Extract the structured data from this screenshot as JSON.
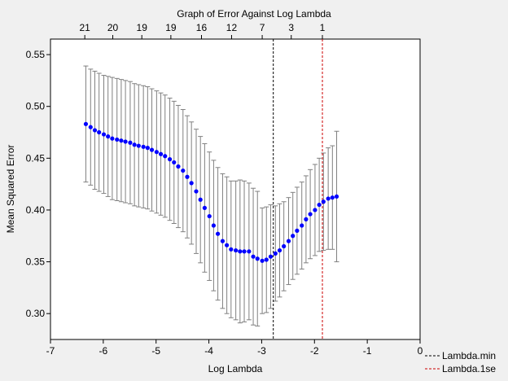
{
  "chart_data": {
    "type": "scatter",
    "title": "Graph of Error Against Log Lambda",
    "xlabel": "Log Lambda",
    "ylabel": "Mean Squared Error",
    "xlim": [
      -7,
      0
    ],
    "ylim": [
      0.275,
      0.565
    ],
    "x_ticks": [
      -7,
      -6,
      -5,
      -4,
      -3,
      -2,
      -1,
      0
    ],
    "x_tick_labels": [
      "-7",
      "-6",
      "-5",
      "-4",
      "-3",
      "-2",
      "-1",
      "0"
    ],
    "y_ticks": [
      0.3,
      0.35,
      0.4,
      0.45,
      0.5,
      0.55
    ],
    "y_tick_labels": [
      "0.30",
      "0.35",
      "0.40",
      "0.45",
      "0.50",
      "0.55"
    ],
    "top_axis": {
      "positions": [
        -6.35,
        -5.82,
        -5.27,
        -4.72,
        -4.14,
        -3.57,
        -2.99,
        -2.44,
        -1.85
      ],
      "labels": [
        "21",
        "20",
        "19",
        "19",
        "16",
        "12",
        "7",
        "3",
        "1"
      ]
    },
    "grid": false,
    "point_color": "#0000ff",
    "errorbar_color": "#808080",
    "series": [
      {
        "x": [
          -6.33,
          -6.24,
          -6.16,
          -6.08,
          -5.99,
          -5.91,
          -5.83,
          -5.74,
          -5.66,
          -5.58,
          -5.49,
          -5.41,
          -5.33,
          -5.24,
          -5.16,
          -5.08,
          -4.99,
          -4.91,
          -4.83,
          -4.74,
          -4.66,
          -4.58,
          -4.49,
          -4.41,
          -4.33,
          -4.24,
          -4.16,
          -4.08,
          -3.99,
          -3.91,
          -3.83,
          -3.74,
          -3.66,
          -3.58,
          -3.49,
          -3.41,
          -3.33,
          -3.24,
          -3.16,
          -3.08,
          -2.99,
          -2.91,
          -2.83,
          -2.74,
          -2.66,
          -2.58,
          -2.49,
          -2.41,
          -2.33,
          -2.24,
          -2.16,
          -2.08,
          -1.99,
          -1.91,
          -1.83,
          -1.74,
          -1.66,
          -1.58
        ],
        "y": [
          0.483,
          0.48,
          0.477,
          0.475,
          0.473,
          0.471,
          0.469,
          0.468,
          0.467,
          0.466,
          0.465,
          0.463,
          0.462,
          0.461,
          0.46,
          0.458,
          0.456,
          0.454,
          0.452,
          0.449,
          0.446,
          0.442,
          0.438,
          0.432,
          0.426,
          0.418,
          0.41,
          0.402,
          0.394,
          0.385,
          0.377,
          0.37,
          0.366,
          0.362,
          0.361,
          0.36,
          0.36,
          0.36,
          0.355,
          0.353,
          0.351,
          0.352,
          0.355,
          0.358,
          0.361,
          0.365,
          0.37,
          0.375,
          0.38,
          0.385,
          0.391,
          0.396,
          0.4,
          0.405,
          0.408,
          0.411,
          0.412,
          0.413
        ],
        "upper": [
          0.539,
          0.536,
          0.534,
          0.532,
          0.53,
          0.529,
          0.528,
          0.527,
          0.526,
          0.525,
          0.524,
          0.522,
          0.521,
          0.52,
          0.519,
          0.517,
          0.515,
          0.513,
          0.511,
          0.508,
          0.505,
          0.501,
          0.497,
          0.491,
          0.485,
          0.478,
          0.471,
          0.464,
          0.456,
          0.448,
          0.441,
          0.435,
          0.432,
          0.428,
          0.428,
          0.429,
          0.428,
          0.426,
          0.421,
          0.418,
          0.402,
          0.403,
          0.405,
          0.404,
          0.406,
          0.408,
          0.412,
          0.417,
          0.422,
          0.427,
          0.433,
          0.439,
          0.444,
          0.45,
          0.455,
          0.46,
          0.462,
          0.476
        ]
      }
    ],
    "vlines": [
      {
        "name": "Lambda.min",
        "x": -2.78,
        "color": "#000000"
      },
      {
        "name": "Lambda.1se",
        "x": -1.85,
        "color": "#cc0000"
      }
    ],
    "legend_position": "bottom-right"
  }
}
